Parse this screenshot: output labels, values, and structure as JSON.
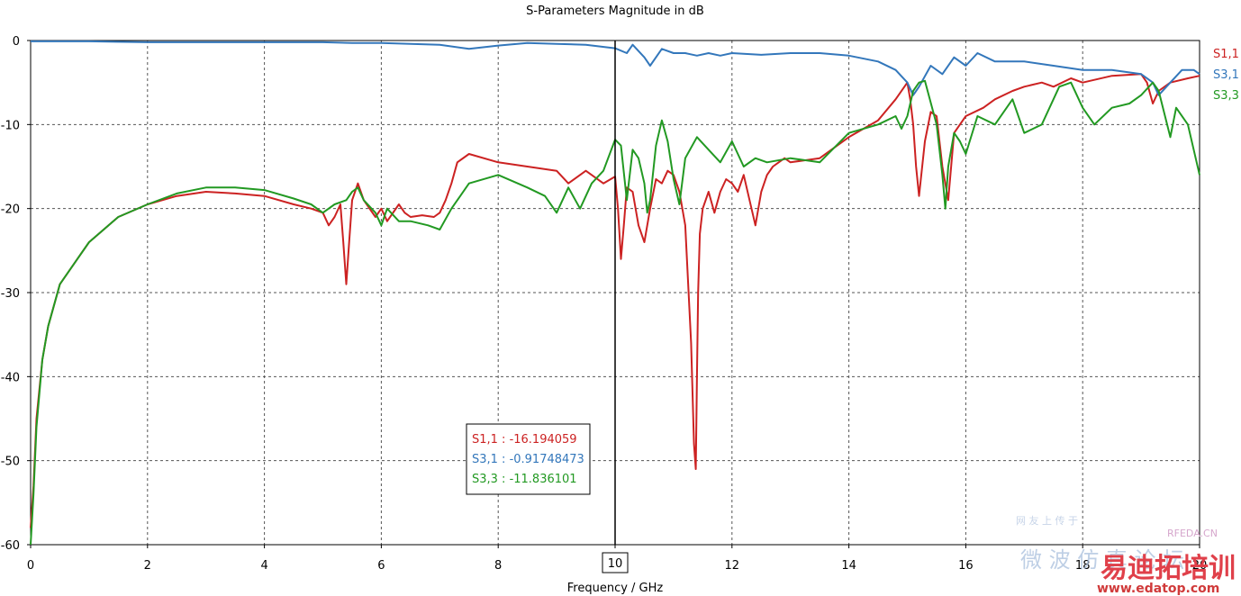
{
  "chart_data": {
    "type": "line",
    "title": "S-Parameters Magnitude in dB",
    "xlabel": "Frequency / GHz",
    "ylabel": "",
    "xlim": [
      0,
      20
    ],
    "ylim": [
      -60,
      0
    ],
    "xticks": [
      0,
      2,
      4,
      6,
      8,
      10,
      12,
      14,
      16,
      18,
      20
    ],
    "yticks": [
      0,
      -10,
      -20,
      -30,
      -40,
      -50,
      -60
    ],
    "grid": true,
    "legend": "right",
    "marker": {
      "x": 10,
      "label": "10"
    },
    "series": [
      {
        "name": "S1,1",
        "color": "#cc2222",
        "x": [
          0,
          0.05,
          0.1,
          0.2,
          0.3,
          0.5,
          0.8,
          1.0,
          1.5,
          2.0,
          2.5,
          3.0,
          3.5,
          4.0,
          4.5,
          4.8,
          5.0,
          5.1,
          5.2,
          5.3,
          5.35,
          5.4,
          5.45,
          5.5,
          5.6,
          5.7,
          5.9,
          6.0,
          6.1,
          6.3,
          6.4,
          6.5,
          6.7,
          6.9,
          7.0,
          7.1,
          7.2,
          7.3,
          7.5,
          8.0,
          8.5,
          9.0,
          9.2,
          9.5,
          9.8,
          10.0,
          10.05,
          10.1,
          10.15,
          10.2,
          10.3,
          10.4,
          10.5,
          10.6,
          10.7,
          10.8,
          10.9,
          11.0,
          11.1,
          11.2,
          11.3,
          11.35,
          11.38,
          11.4,
          11.42,
          11.45,
          11.5,
          11.6,
          11.7,
          11.8,
          11.9,
          12.0,
          12.1,
          12.2,
          12.3,
          12.4,
          12.5,
          12.6,
          12.7,
          12.8,
          12.9,
          13.0,
          13.5,
          14.0,
          14.5,
          14.8,
          15.0,
          15.05,
          15.1,
          15.15,
          15.2,
          15.3,
          15.4,
          15.5,
          15.6,
          15.7,
          15.8,
          16.0,
          16.3,
          16.5,
          16.8,
          17.0,
          17.3,
          17.5,
          17.8,
          18.0,
          18.5,
          19.0,
          19.1,
          19.2,
          19.3,
          19.5,
          19.8,
          20.0
        ],
        "y": [
          -58,
          -53,
          -45,
          -38,
          -34,
          -29,
          -26,
          -24,
          -21,
          -19.5,
          -18.5,
          -18.0,
          -18.2,
          -18.5,
          -19.5,
          -20.0,
          -20.5,
          -22.0,
          -21.0,
          -19.5,
          -24.0,
          -29.0,
          -24.0,
          -19.0,
          -17.0,
          -19.0,
          -21.0,
          -20.0,
          -21.5,
          -19.5,
          -20.5,
          -21.0,
          -20.8,
          -21.0,
          -20.5,
          -19.0,
          -17.0,
          -14.5,
          -13.5,
          -14.5,
          -15.0,
          -15.5,
          -17.0,
          -15.5,
          -17.0,
          -16.19,
          -20.0,
          -26.0,
          -22.0,
          -17.5,
          -18.0,
          -22.0,
          -24.0,
          -20.0,
          -16.5,
          -17.0,
          -15.5,
          -16.0,
          -18.0,
          -22.0,
          -36.0,
          -48.0,
          -51.0,
          -40.0,
          -30.0,
          -23.0,
          -20.0,
          -18.0,
          -20.5,
          -18.0,
          -16.5,
          -17.0,
          -18.0,
          -16.0,
          -19.0,
          -22.0,
          -18.0,
          -16.0,
          -15.0,
          -14.5,
          -14.0,
          -14.5,
          -14.0,
          -11.5,
          -9.5,
          -7.0,
          -5.0,
          -7.0,
          -10.0,
          -15.0,
          -18.5,
          -12.0,
          -8.5,
          -9.0,
          -15.0,
          -19.0,
          -11.0,
          -9.0,
          -8.0,
          -7.0,
          -6.0,
          -5.5,
          -5.0,
          -5.5,
          -4.5,
          -5.0,
          -4.2,
          -4.0,
          -5.0,
          -7.5,
          -6.0,
          -5.0,
          -4.5,
          -4.2
        ]
      },
      {
        "name": "S3,1",
        "color": "#3377bb",
        "x": [
          0,
          1,
          2,
          3,
          4,
          5,
          5.5,
          6,
          6.5,
          7,
          7.5,
          8,
          8.5,
          9,
          9.5,
          10,
          10.2,
          10.3,
          10.5,
          10.6,
          10.8,
          11.0,
          11.2,
          11.4,
          11.6,
          11.8,
          12.0,
          12.5,
          13,
          13.5,
          14,
          14.5,
          14.8,
          15.0,
          15.1,
          15.2,
          15.4,
          15.6,
          15.8,
          16.0,
          16.2,
          16.5,
          17,
          17.5,
          18,
          18.5,
          19,
          19.2,
          19.3,
          19.5,
          19.7,
          19.9,
          20.0
        ],
        "y": [
          -0.1,
          -0.1,
          -0.2,
          -0.2,
          -0.2,
          -0.2,
          -0.3,
          -0.3,
          -0.4,
          -0.5,
          -1.0,
          -0.6,
          -0.3,
          -0.4,
          -0.5,
          -0.92,
          -1.5,
          -0.5,
          -2.0,
          -3.0,
          -1.0,
          -1.5,
          -1.5,
          -1.8,
          -1.5,
          -1.8,
          -1.5,
          -1.7,
          -1.5,
          -1.5,
          -1.8,
          -2.5,
          -3.5,
          -5.0,
          -6.5,
          -5.5,
          -3.0,
          -4.0,
          -2.0,
          -3.0,
          -1.5,
          -2.5,
          -2.5,
          -3.0,
          -3.5,
          -3.5,
          -4.0,
          -5.0,
          -6.5,
          -5.0,
          -3.5,
          -3.5,
          -4.0
        ]
      },
      {
        "name": "S3,3",
        "color": "#229922",
        "x": [
          0,
          0.05,
          0.1,
          0.2,
          0.3,
          0.5,
          0.8,
          1.0,
          1.5,
          2.0,
          2.5,
          3.0,
          3.5,
          4.0,
          4.5,
          4.8,
          5.0,
          5.2,
          5.4,
          5.5,
          5.6,
          5.7,
          5.9,
          6.0,
          6.1,
          6.3,
          6.5,
          6.8,
          7.0,
          7.2,
          7.5,
          8.0,
          8.5,
          8.8,
          9.0,
          9.2,
          9.4,
          9.6,
          9.8,
          10.0,
          10.1,
          10.2,
          10.3,
          10.4,
          10.5,
          10.55,
          10.6,
          10.7,
          10.8,
          10.9,
          11.0,
          11.1,
          11.2,
          11.4,
          11.6,
          11.8,
          12.0,
          12.2,
          12.4,
          12.6,
          13.0,
          13.5,
          14.0,
          14.5,
          14.8,
          14.9,
          15.0,
          15.1,
          15.2,
          15.3,
          15.5,
          15.6,
          15.65,
          15.7,
          15.8,
          15.9,
          16.0,
          16.2,
          16.5,
          16.8,
          17.0,
          17.3,
          17.6,
          17.8,
          18.0,
          18.2,
          18.5,
          18.8,
          19.0,
          19.2,
          19.3,
          19.5,
          19.6,
          19.8,
          20.0
        ],
        "y": [
          -60,
          -54,
          -46,
          -38,
          -34,
          -29,
          -26,
          -24,
          -21,
          -19.5,
          -18.2,
          -17.5,
          -17.5,
          -17.8,
          -18.8,
          -19.5,
          -20.5,
          -19.5,
          -19.0,
          -18.0,
          -17.5,
          -19.0,
          -20.5,
          -22.0,
          -20.0,
          -21.5,
          -21.5,
          -22.0,
          -22.5,
          -20.0,
          -17.0,
          -16.0,
          -17.5,
          -18.5,
          -20.5,
          -17.5,
          -20.0,
          -17.0,
          -15.5,
          -11.8,
          -12.5,
          -19.0,
          -13.0,
          -14.0,
          -17.0,
          -20.5,
          -19.0,
          -12.5,
          -9.5,
          -12.0,
          -16.5,
          -19.5,
          -14.0,
          -11.5,
          -13.0,
          -14.5,
          -12.0,
          -15.0,
          -14.0,
          -14.5,
          -14.0,
          -14.5,
          -11.0,
          -10.0,
          -9.0,
          -10.5,
          -9.0,
          -6.0,
          -5.0,
          -4.8,
          -10.0,
          -16.0,
          -20.0,
          -15.0,
          -11.0,
          -12.0,
          -13.5,
          -9.0,
          -10.0,
          -7.0,
          -11.0,
          -10.0,
          -5.5,
          -5.0,
          -8.0,
          -10.0,
          -8.0,
          -7.5,
          -6.5,
          -5.0,
          -6.0,
          -11.5,
          -8.0,
          -10.0,
          -16.0
        ]
      }
    ],
    "readout": {
      "items": [
        {
          "text": "S1,1 : -16.194059",
          "color": "#cc2222"
        },
        {
          "text": "S3,1 : -0.91748473",
          "color": "#3377bb"
        },
        {
          "text": "S3,3 : -11.836101",
          "color": "#229922"
        }
      ]
    }
  },
  "watermark": {
    "line1": "网 友 上 传 于",
    "brand": "RFEDA.CN",
    "line2": "微 波 仿 真 论 坛",
    "cn_logo": "易迪拓培训",
    "url": "www.edatop.com"
  }
}
